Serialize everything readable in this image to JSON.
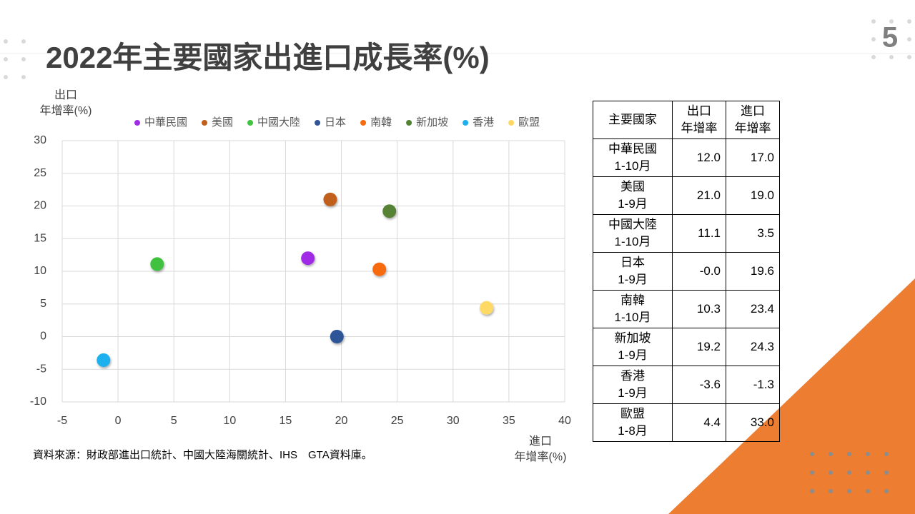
{
  "slide_number": "5",
  "title": "2022年主要國家出進口成長率(%)",
  "source": "資料來源：財政部進出口統計、中國大陸海關統計、IHS　GTA資料庫。",
  "chart_data": {
    "type": "scatter",
    "ylabel": [
      "出口",
      "年增率(%)"
    ],
    "xlabel": [
      "進口",
      "年增率(%)"
    ],
    "xlim": [
      -5,
      40
    ],
    "xticks": [
      -5,
      0,
      5,
      10,
      15,
      20,
      25,
      30,
      35,
      40
    ],
    "ylim": [
      -10,
      30
    ],
    "yticks": [
      -10,
      -5,
      0,
      5,
      10,
      15,
      20,
      25,
      30
    ],
    "grid": true,
    "legend": "top",
    "series": [
      {
        "name": "中華民國",
        "color": "#a12ce6",
        "x": [
          17.0
        ],
        "values": [
          12.0
        ]
      },
      {
        "name": "美國",
        "color": "#c0601c",
        "x": [
          19.0
        ],
        "values": [
          21.0
        ]
      },
      {
        "name": "中國大陸",
        "color": "#3fc23f",
        "x": [
          3.5
        ],
        "values": [
          11.1
        ]
      },
      {
        "name": "日本",
        "color": "#2f5597",
        "x": [
          19.6
        ],
        "values": [
          -0.0
        ]
      },
      {
        "name": "南韓",
        "color": "#f76a0e",
        "x": [
          23.4
        ],
        "values": [
          10.3
        ]
      },
      {
        "name": "新加坡",
        "color": "#548235",
        "x": [
          24.3
        ],
        "values": [
          19.2
        ]
      },
      {
        "name": "香港",
        "color": "#1eb0ee",
        "x": [
          -1.3
        ],
        "values": [
          -3.6
        ]
      },
      {
        "name": "歐盟",
        "color": "#ffd966",
        "x": [
          33.0
        ],
        "values": [
          4.4
        ]
      }
    ]
  },
  "table": {
    "header": [
      "主要國家",
      [
        "出口",
        "年增率"
      ],
      [
        "進口",
        "年增率"
      ]
    ],
    "rows": [
      [
        [
          "中華民國",
          "1-10月"
        ],
        "12.0",
        "17.0"
      ],
      [
        [
          "美國",
          "1-9月"
        ],
        "21.0",
        "19.0"
      ],
      [
        [
          "中國大陸",
          "1-10月"
        ],
        "11.1",
        "3.5"
      ],
      [
        [
          "日本",
          "1-9月"
        ],
        "-0.0",
        "19.6"
      ],
      [
        [
          "南韓",
          "1-10月"
        ],
        "10.3",
        "23.4"
      ],
      [
        [
          "新加坡",
          "1-9月"
        ],
        "19.2",
        "24.3"
      ],
      [
        [
          "香港",
          "1-9月"
        ],
        "-3.6",
        "-1.3"
      ],
      [
        [
          "歐盟",
          "1-8月"
        ],
        "4.4",
        "33.0"
      ]
    ]
  }
}
